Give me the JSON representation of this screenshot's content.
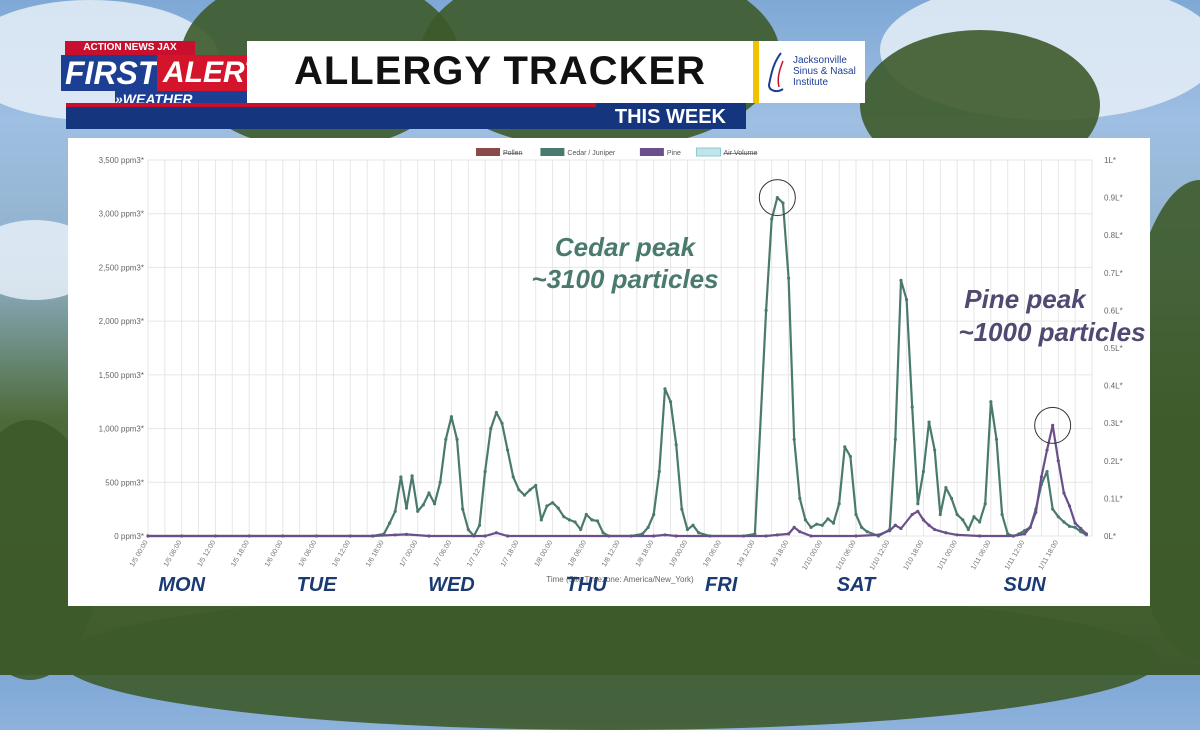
{
  "banner": {
    "station": "ACTION NEWS JAX",
    "brand_first": "FIRST",
    "brand_alert": "ALERT",
    "brand_weather": "WEATHER",
    "title": "ALLERGY TRACKER",
    "subtitle": "THIS WEEK",
    "sponsor_line1": "Jacksonville",
    "sponsor_line2": "Sinus & Nasal",
    "sponsor_line3": "Institute"
  },
  "colors": {
    "pollen": "#8b4a4a",
    "cedar": "#4a7a6e",
    "pine": "#6b4f8a",
    "air": "#bfe5ea",
    "annotation_cedar": "#4a7a6e",
    "annotation_pine": "#4e4a72",
    "day_label": "#1a3a73"
  },
  "chart_data": {
    "type": "line",
    "legend": [
      "Pollen",
      "Cedar / Juniper",
      "Pine",
      "Air Volume"
    ],
    "legend_struck": [
      true,
      false,
      false,
      true
    ],
    "legend_position": "top-center",
    "xlabel": "Time (Site Timezone: America/New_York)",
    "y_ticks": [
      "0 ppm3*",
      "500 ppm3*",
      "1,000 ppm3*",
      "1,500 ppm3*",
      "2,000 ppm3*",
      "2,500 ppm3*",
      "3,000 ppm3*",
      "3,500 ppm3*"
    ],
    "ylim": [
      0,
      3500
    ],
    "y2_ticks": [
      "0L*",
      "0.1L*",
      "0.2L*",
      "0.3L*",
      "0.4L*",
      "0.5L*",
      "0.6L*",
      "0.7L*",
      "0.8L*",
      "0.9L*",
      "1L*"
    ],
    "y2lim": [
      0,
      1
    ],
    "xlim": [
      0,
      168
    ],
    "x_ticks": [
      "1/5 00:00",
      "1/5 06:00",
      "1/5 12:00",
      "1/5 18:00",
      "1/6 00:00",
      "1/6 06:00",
      "1/6 12:00",
      "1/6 18:00",
      "1/7 00:00",
      "1/7 06:00",
      "1/7 12:00",
      "1/7 18:00",
      "1/8 00:00",
      "1/8 06:00",
      "1/8 12:00",
      "1/8 18:00",
      "1/9 00:00",
      "1/9 06:00",
      "1/9 12:00",
      "1/9 18:00",
      "1/10 00:00",
      "1/10 06:00",
      "1/10 12:00",
      "1/10 18:00",
      "1/11 00:00",
      "1/11 06:00",
      "1/11 12:00",
      "1/11 18:00"
    ],
    "grid": true,
    "series": [
      {
        "name": "Cedar / Juniper",
        "points": [
          [
            0,
            0
          ],
          [
            6,
            0
          ],
          [
            12,
            0
          ],
          [
            18,
            0
          ],
          [
            24,
            0
          ],
          [
            30,
            0
          ],
          [
            36,
            0
          ],
          [
            40,
            0
          ],
          [
            42,
            20
          ],
          [
            43,
            120
          ],
          [
            44,
            230
          ],
          [
            45,
            550
          ],
          [
            46,
            260
          ],
          [
            47,
            560
          ],
          [
            48,
            230
          ],
          [
            49,
            290
          ],
          [
            50,
            400
          ],
          [
            51,
            300
          ],
          [
            52,
            500
          ],
          [
            53,
            900
          ],
          [
            54,
            1110
          ],
          [
            55,
            900
          ],
          [
            56,
            250
          ],
          [
            57,
            60
          ],
          [
            58,
            0
          ],
          [
            59,
            100
          ],
          [
            60,
            600
          ],
          [
            61,
            1000
          ],
          [
            62,
            1150
          ],
          [
            63,
            1050
          ],
          [
            64,
            800
          ],
          [
            65,
            550
          ],
          [
            66,
            430
          ],
          [
            67,
            380
          ],
          [
            68,
            430
          ],
          [
            69,
            470
          ],
          [
            70,
            150
          ],
          [
            71,
            280
          ],
          [
            72,
            310
          ],
          [
            73,
            260
          ],
          [
            74,
            180
          ],
          [
            75,
            150
          ],
          [
            76,
            130
          ],
          [
            77,
            60
          ],
          [
            78,
            200
          ],
          [
            79,
            150
          ],
          [
            80,
            140
          ],
          [
            81,
            30
          ],
          [
            82,
            0
          ],
          [
            86,
            0
          ],
          [
            88,
            20
          ],
          [
            89,
            80
          ],
          [
            90,
            200
          ],
          [
            91,
            600
          ],
          [
            92,
            1370
          ],
          [
            93,
            1250
          ],
          [
            94,
            850
          ],
          [
            95,
            250
          ],
          [
            96,
            60
          ],
          [
            97,
            100
          ],
          [
            98,
            30
          ],
          [
            100,
            0
          ],
          [
            106,
            0
          ],
          [
            108,
            20
          ],
          [
            110,
            2100
          ],
          [
            111,
            2950
          ],
          [
            112,
            3150
          ],
          [
            113,
            3100
          ],
          [
            114,
            2400
          ],
          [
            115,
            900
          ],
          [
            116,
            350
          ],
          [
            117,
            150
          ],
          [
            118,
            80
          ],
          [
            119,
            110
          ],
          [
            120,
            100
          ],
          [
            121,
            160
          ],
          [
            122,
            120
          ],
          [
            123,
            300
          ],
          [
            124,
            830
          ],
          [
            125,
            740
          ],
          [
            126,
            200
          ],
          [
            127,
            80
          ],
          [
            128,
            40
          ],
          [
            130,
            0
          ],
          [
            132,
            60
          ],
          [
            133,
            900
          ],
          [
            134,
            2380
          ],
          [
            135,
            2200
          ],
          [
            136,
            1200
          ],
          [
            137,
            300
          ],
          [
            138,
            600
          ],
          [
            139,
            1060
          ],
          [
            140,
            800
          ],
          [
            141,
            200
          ],
          [
            142,
            450
          ],
          [
            143,
            350
          ],
          [
            144,
            200
          ],
          [
            145,
            150
          ],
          [
            146,
            60
          ],
          [
            147,
            180
          ],
          [
            148,
            130
          ],
          [
            149,
            300
          ],
          [
            150,
            1250
          ],
          [
            151,
            900
          ],
          [
            152,
            200
          ],
          [
            153,
            20
          ],
          [
            154,
            0
          ],
          [
            155,
            20
          ],
          [
            156,
            50
          ],
          [
            157,
            80
          ],
          [
            158,
            250
          ],
          [
            159,
            480
          ],
          [
            160,
            600
          ],
          [
            161,
            250
          ],
          [
            162,
            180
          ],
          [
            163,
            130
          ],
          [
            164,
            90
          ],
          [
            165,
            80
          ],
          [
            166,
            40
          ],
          [
            167,
            10
          ]
        ]
      },
      {
        "name": "Pine",
        "points": [
          [
            0,
            0
          ],
          [
            40,
            0
          ],
          [
            44,
            10
          ],
          [
            46,
            15
          ],
          [
            50,
            0
          ],
          [
            60,
            0
          ],
          [
            62,
            30
          ],
          [
            64,
            0
          ],
          [
            90,
            0
          ],
          [
            92,
            10
          ],
          [
            94,
            0
          ],
          [
            110,
            0
          ],
          [
            112,
            10
          ],
          [
            114,
            20
          ],
          [
            115,
            80
          ],
          [
            116,
            40
          ],
          [
            118,
            0
          ],
          [
            126,
            0
          ],
          [
            130,
            10
          ],
          [
            132,
            50
          ],
          [
            133,
            100
          ],
          [
            134,
            70
          ],
          [
            136,
            200
          ],
          [
            137,
            230
          ],
          [
            138,
            150
          ],
          [
            139,
            100
          ],
          [
            140,
            60
          ],
          [
            142,
            30
          ],
          [
            144,
            10
          ],
          [
            148,
            0
          ],
          [
            154,
            0
          ],
          [
            156,
            20
          ],
          [
            157,
            80
          ],
          [
            158,
            220
          ],
          [
            159,
            550
          ],
          [
            160,
            800
          ],
          [
            161,
            1030
          ],
          [
            162,
            700
          ],
          [
            163,
            400
          ],
          [
            164,
            280
          ],
          [
            165,
            120
          ],
          [
            166,
            70
          ],
          [
            167,
            20
          ]
        ]
      }
    ],
    "annotations": [
      {
        "line1": "Cedar peak",
        "line2": "~3100 particles",
        "marker_x": 112,
        "marker_y": 3150
      },
      {
        "line1": "Pine peak",
        "line2": "~1000 particles",
        "marker_x": 161,
        "marker_y": 1030
      }
    ],
    "day_labels": [
      {
        "label": "MON",
        "x": 6
      },
      {
        "label": "TUE",
        "x": 30
      },
      {
        "label": "WED",
        "x": 54
      },
      {
        "label": "THU",
        "x": 78
      },
      {
        "label": "FRI",
        "x": 102
      },
      {
        "label": "SAT",
        "x": 126
      },
      {
        "label": "SUN",
        "x": 156
      }
    ]
  }
}
